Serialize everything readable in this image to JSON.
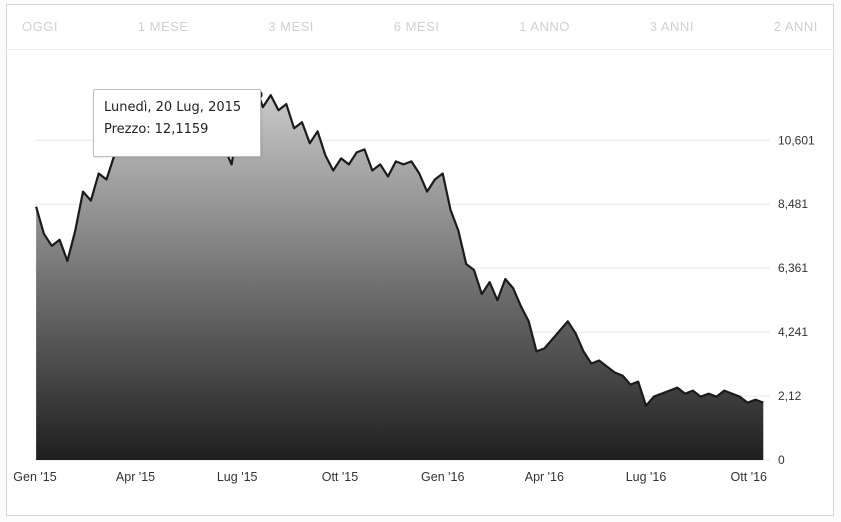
{
  "range_buttons": [
    "OGGI",
    "1 MESE",
    "3 MESI",
    "6 MESI",
    "1 ANNO",
    "3 ANNI",
    "2 ANNI"
  ],
  "tooltip": {
    "date": "Lunedì, 20 Lug, 2015",
    "price_label": "Prezzo:",
    "price_value": "12,1159"
  },
  "colors": {
    "line": "#1b1b1b",
    "area_top": "#c9c9c9",
    "area_bottom": "#1f1f1f",
    "marker": "#2a2a2a"
  },
  "chart_data": {
    "type": "area",
    "title": "",
    "xlabel": "",
    "ylabel": "",
    "y_ticks": [
      "0",
      "2,12",
      "4,241",
      "6,361",
      "8,481",
      "10,601"
    ],
    "x_ticks": [
      "Gen '15",
      "Apr '15",
      "Lug '15",
      "Ott '15",
      "Gen '16",
      "Apr '16",
      "Lug '16",
      "Ott '16"
    ],
    "ylim": [
      0,
      12.6
    ],
    "grid": true,
    "x": [
      "2015-01-02",
      "2015-01-09",
      "2015-01-16",
      "2015-01-23",
      "2015-01-30",
      "2015-02-06",
      "2015-02-13",
      "2015-02-20",
      "2015-02-27",
      "2015-03-06",
      "2015-03-13",
      "2015-03-20",
      "2015-03-27",
      "2015-04-03",
      "2015-04-10",
      "2015-04-17",
      "2015-04-24",
      "2015-05-01",
      "2015-05-08",
      "2015-05-15",
      "2015-05-22",
      "2015-05-29",
      "2015-06-05",
      "2015-06-12",
      "2015-06-19",
      "2015-06-26",
      "2015-07-03",
      "2015-07-10",
      "2015-07-17",
      "2015-07-20",
      "2015-07-24",
      "2015-07-31",
      "2015-08-07",
      "2015-08-14",
      "2015-08-21",
      "2015-08-28",
      "2015-09-04",
      "2015-09-11",
      "2015-09-18",
      "2015-09-25",
      "2015-10-02",
      "2015-10-09",
      "2015-10-16",
      "2015-10-23",
      "2015-10-30",
      "2015-11-06",
      "2015-11-13",
      "2015-11-20",
      "2015-11-27",
      "2015-12-04",
      "2015-12-11",
      "2015-12-18",
      "2015-12-25",
      "2016-01-01",
      "2016-01-08",
      "2016-01-15",
      "2016-01-22",
      "2016-01-29",
      "2016-02-05",
      "2016-02-12",
      "2016-02-19",
      "2016-02-26",
      "2016-03-04",
      "2016-03-11",
      "2016-03-18",
      "2016-03-25",
      "2016-04-01",
      "2016-04-08",
      "2016-04-15",
      "2016-04-22",
      "2016-04-29",
      "2016-05-06",
      "2016-05-13",
      "2016-05-20",
      "2016-05-27",
      "2016-06-03",
      "2016-06-10",
      "2016-06-17",
      "2016-06-24",
      "2016-07-01",
      "2016-07-08",
      "2016-07-15",
      "2016-07-22",
      "2016-07-29",
      "2016-08-05",
      "2016-08-12",
      "2016-08-19",
      "2016-08-26",
      "2016-09-02",
      "2016-09-09",
      "2016-09-16",
      "2016-09-23",
      "2016-09-30",
      "2016-10-07",
      "2016-10-14"
    ],
    "series": [
      {
        "values": [
          8.4,
          7.5,
          7.1,
          7.3,
          6.6,
          7.6,
          8.9,
          8.6,
          9.5,
          9.3,
          10.1,
          10.4,
          10.6,
          10.2,
          10.9,
          10.3,
          11.1,
          10.5,
          10.8,
          11.3,
          10.6,
          11.0,
          10.2,
          10.7,
          10.4,
          9.8,
          11.4,
          11.9,
          12.0,
          12.1159,
          11.7,
          12.1,
          11.6,
          11.8,
          11.0,
          11.2,
          10.5,
          10.9,
          10.1,
          9.6,
          10.0,
          9.8,
          10.2,
          10.3,
          9.6,
          9.8,
          9.4,
          9.9,
          9.8,
          9.9,
          9.5,
          8.9,
          9.3,
          9.5,
          8.3,
          7.6,
          6.5,
          6.3,
          5.5,
          5.9,
          5.3,
          6.0,
          5.7,
          5.1,
          4.6,
          3.6,
          3.7,
          4.0,
          4.3,
          4.6,
          4.2,
          3.6,
          3.2,
          3.3,
          3.1,
          2.9,
          2.8,
          2.5,
          2.6,
          1.8,
          2.1,
          2.2,
          2.3,
          2.4,
          2.2,
          2.3,
          2.1,
          2.2,
          2.1,
          2.3,
          2.2,
          2.1,
          1.9,
          2.0,
          1.9
        ]
      }
    ]
  }
}
